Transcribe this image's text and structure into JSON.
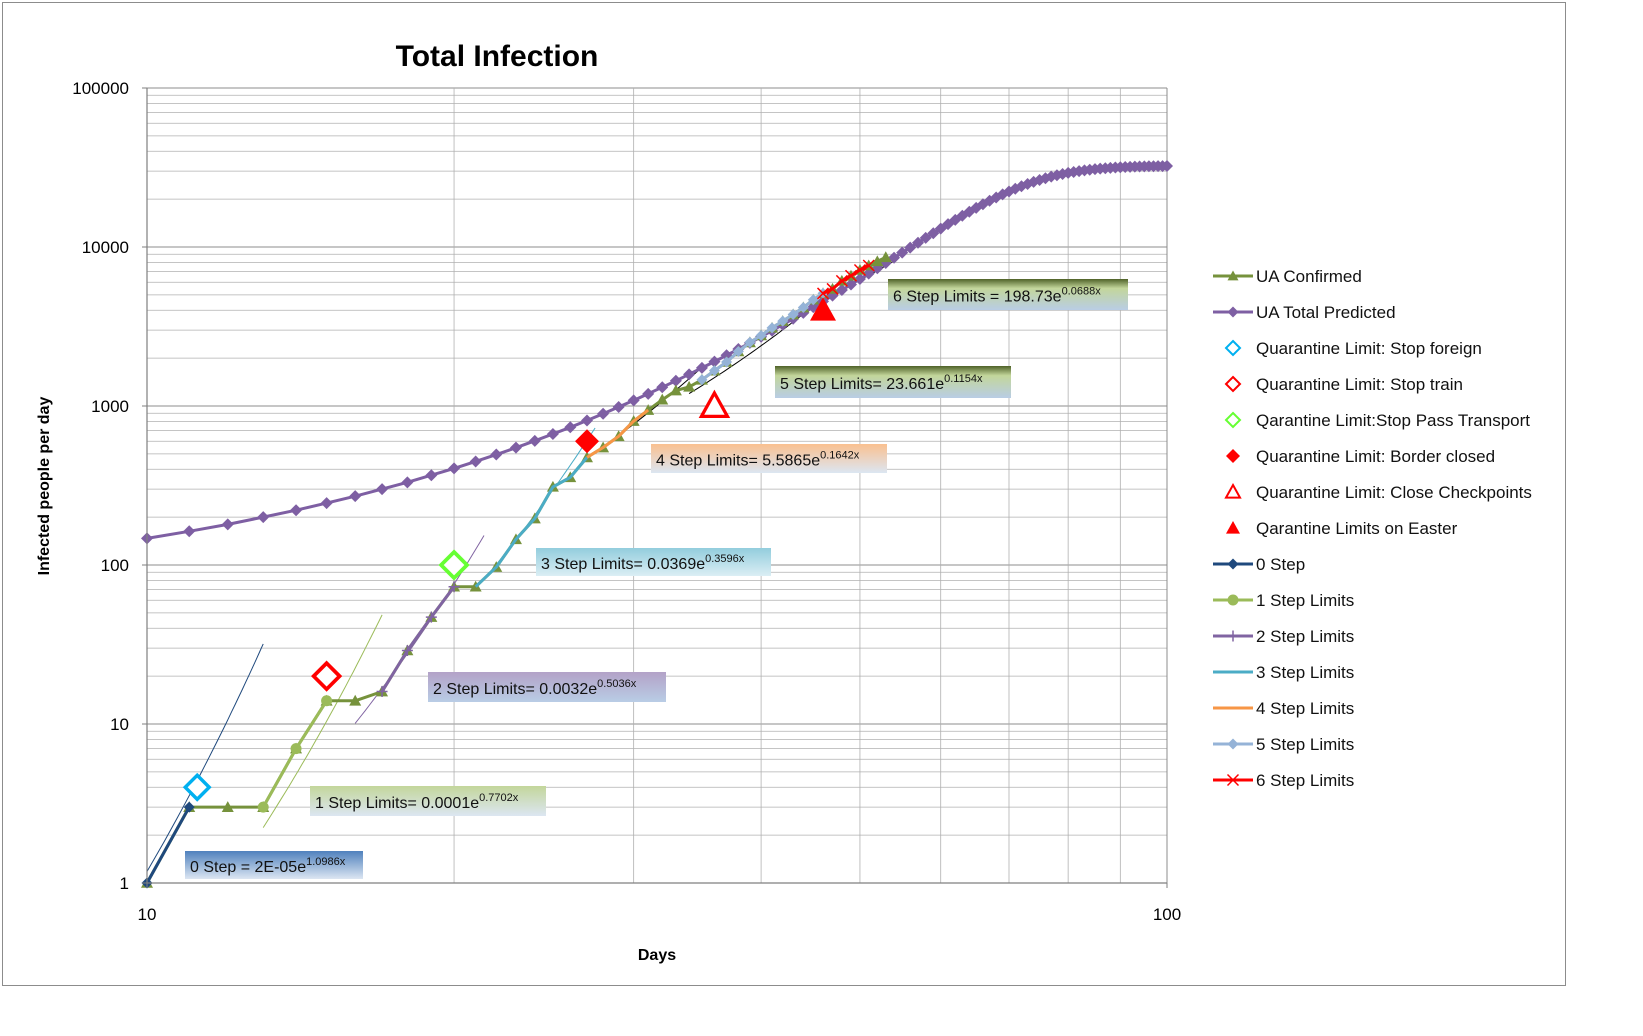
{
  "chart_data": {
    "type": "line",
    "title": "Total Infection",
    "xlabel": "Days",
    "ylabel": "Infected people per day",
    "xscale": "log",
    "yscale": "log",
    "xlim": [
      10,
      100
    ],
    "ylim": [
      1,
      100000
    ],
    "x_ticks": [
      "10",
      "100"
    ],
    "y_ticks": [
      "1",
      "10",
      "100",
      "1000",
      "10000",
      "100000"
    ],
    "grid": true,
    "legend_position": "right",
    "series": [
      {
        "name": "UA Confirmed",
        "color": "#76923c",
        "marker": "triangle",
        "x": [
          10,
          11,
          12,
          13,
          14,
          15,
          16,
          17,
          18,
          19,
          20,
          21,
          22,
          23,
          24,
          25,
          26,
          27,
          28,
          29,
          30,
          31,
          32,
          33,
          34,
          35,
          36,
          37,
          38,
          39,
          40,
          41,
          42,
          43,
          44,
          45,
          46,
          47,
          48,
          49,
          50,
          51,
          52,
          53
        ],
        "y": [
          1,
          3,
          3,
          3,
          7,
          14,
          14,
          16,
          29,
          47,
          73,
          73,
          97,
          145,
          196,
          310,
          356,
          475,
          548,
          645,
          804,
          942,
          1096,
          1251,
          1319,
          1462,
          1668,
          1892,
          2203,
          2511,
          2777,
          3102,
          3420,
          3764,
          4161,
          4662,
          5106,
          5449,
          6125,
          6592,
          7170,
          7647,
          8125,
          8617
        ]
      },
      {
        "name": "UA  Total Predicted",
        "color": "#7e5fa3",
        "marker": "diamond",
        "x": [
          10,
          11,
          12,
          13,
          14,
          15,
          16,
          17,
          18,
          19,
          20,
          21,
          22,
          23,
          24,
          25,
          26,
          27,
          28,
          29,
          30,
          31,
          32,
          33,
          34,
          35,
          36,
          37,
          38,
          39,
          40,
          41,
          42,
          43,
          44,
          45,
          46,
          47,
          48,
          49,
          50,
          51,
          52,
          53,
          54,
          55,
          56,
          57,
          58,
          59,
          60,
          61,
          62,
          63,
          64,
          65,
          66,
          67,
          68,
          69,
          70,
          71,
          72,
          73,
          74,
          75,
          76,
          77,
          78,
          79,
          80,
          81,
          82,
          83,
          84,
          85,
          86,
          87,
          88,
          89,
          90,
          91,
          92,
          93,
          94,
          95,
          96,
          97,
          98,
          99,
          100
        ],
        "y": [
          147,
          163,
          180,
          200,
          221,
          245,
          271,
          300,
          331,
          367,
          405,
          448,
          495,
          547,
          604,
          667,
          735,
          811,
          894,
          985,
          1084,
          1193,
          1312,
          1441,
          1582,
          1736,
          1903,
          2084,
          2281,
          2494,
          2725,
          2975,
          3245,
          3536,
          3850,
          4188,
          4552,
          4943,
          5362,
          5812,
          6292,
          6806,
          7353,
          7937,
          8556,
          9213,
          9907,
          10638,
          11406,
          12210,
          13047,
          13916,
          14812,
          15732,
          16671,
          17623,
          18582,
          19542,
          20496,
          21435,
          22353,
          23243,
          24098,
          24913,
          25683,
          26404,
          27074,
          27692,
          28257,
          28771,
          29234,
          29649,
          30018,
          30344,
          30631,
          30883,
          31103,
          31294,
          31460,
          31603,
          31726,
          31832,
          31923,
          32001,
          32067,
          32124,
          32172,
          32213,
          32248,
          32278,
          32304
        ]
      },
      {
        "name": "Quarantine Limit: Stop foreign",
        "color": "#00b0f0",
        "marker": "diamond-open",
        "x": [
          11.2
        ],
        "y": [
          4
        ]
      },
      {
        "name": "Quarantine Limit: Stop train",
        "color": "#ff0000",
        "marker": "diamond-open",
        "x": [
          15
        ],
        "y": [
          20
        ]
      },
      {
        "name": "Qarantine Limit:Stop Pass Transport",
        "color": "#66ff33",
        "marker": "diamond-open",
        "x": [
          20
        ],
        "y": [
          100
        ]
      },
      {
        "name": "Quarantine Limit: Border closed",
        "color": "#ff0000",
        "marker": "diamond",
        "x": [
          27
        ],
        "y": [
          600
        ]
      },
      {
        "name": "Quarantine Limit: Close Checkpoints",
        "color": "#ff0000",
        "marker": "triangle-open",
        "x": [
          36
        ],
        "y": [
          1000
        ]
      },
      {
        "name": "Qarantine Limits on Easter",
        "color": "#ff0000",
        "marker": "triangle",
        "x": [
          46
        ],
        "y": [
          4000
        ]
      },
      {
        "name": "0 Step",
        "color": "#1f497d",
        "marker": "diamond",
        "x": [
          10,
          11
        ],
        "y": [
          1,
          3
        ]
      },
      {
        "name": "1 Step Limits",
        "color": "#9bbb59",
        "marker": "circle",
        "x": [
          13,
          14,
          15
        ],
        "y": [
          3,
          7,
          14
        ]
      },
      {
        "name": "2 Step Limits",
        "color": "#8064a2",
        "marker": "plus",
        "x": [
          17,
          18,
          19,
          20
        ],
        "y": [
          16,
          29,
          47,
          73
        ]
      },
      {
        "name": "3 Step Limits",
        "color": "#4bacc6",
        "marker": "none",
        "x": [
          21,
          22,
          23,
          24,
          25,
          26,
          27
        ],
        "y": [
          73,
          97,
          145,
          196,
          310,
          356,
          475
        ]
      },
      {
        "name": "4 Step Limits",
        "color": "#f79646",
        "marker": "none",
        "x": [
          27,
          28,
          29,
          30,
          31
        ],
        "y": [
          475,
          548,
          645,
          804,
          942
        ]
      },
      {
        "name": "5 Step Limits",
        "color": "#95b3d7",
        "marker": "diamond",
        "x": [
          35,
          36,
          37,
          38,
          39,
          40,
          41,
          42,
          43,
          44,
          45,
          46
        ],
        "y": [
          1462,
          1668,
          1892,
          2203,
          2511,
          2777,
          3102,
          3420,
          3764,
          4161,
          4662,
          5106
        ]
      },
      {
        "name": "6 Step Limits",
        "color": "#ff0000",
        "marker": "x",
        "x": [
          46,
          47,
          48,
          49,
          50,
          51
        ],
        "y": [
          5106,
          5449,
          6125,
          6592,
          7170,
          7647
        ]
      }
    ],
    "trendlines": [
      {
        "x": [
          10,
          13
        ],
        "color": "#1f497d",
        "a": 2e-05,
        "b": 1.0986
      },
      {
        "x": [
          13,
          17
        ],
        "color": "#9bbb59",
        "a": 0.0001,
        "b": 0.7702
      },
      {
        "x": [
          16,
          21.4
        ],
        "color": "#8064a2",
        "a": 0.0032,
        "b": 0.5036
      },
      {
        "x": [
          21.5,
          27.5
        ],
        "color": "#4bacc6",
        "a": 0.0369,
        "b": 0.3596
      },
      {
        "x": [
          27,
          35
        ],
        "color": "#000000",
        "a": 5.5865,
        "b": 0.1642
      },
      {
        "x": [
          34,
          48
        ],
        "color": "#000000",
        "a": 23.661,
        "b": 0.1154
      },
      {
        "x": [
          45,
          54
        ],
        "color": "#000000",
        "a": 198.73,
        "b": 0.0688
      }
    ],
    "annotations": [
      {
        "base": "0 Step = 2E-05e",
        "exp": "1.0986x",
        "fill": "#4f81bd"
      },
      {
        "base": "1 Step Limits= 0.0001e",
        "exp": "0.7702x",
        "fill": "#9bbb59"
      },
      {
        "base": "2 Step Limits= 0.0032e",
        "exp": "0.5036x",
        "fill": "#8064a2"
      },
      {
        "base": "3 Step Limits= 0.0369e",
        "exp": "0.3596x",
        "fill": "#4bacc6"
      },
      {
        "base": "4 Step Limits= 5.5865e",
        "exp": "0.1642x",
        "fill": "#f79646"
      },
      {
        "base": "5 Step Limits= 23.661e",
        "exp": "0.1154x",
        "fill": "#4f6228"
      },
      {
        "base": "6 Step Limits = 198.73e",
        "exp": "0.0688x",
        "fill": "#4f6228"
      }
    ]
  }
}
